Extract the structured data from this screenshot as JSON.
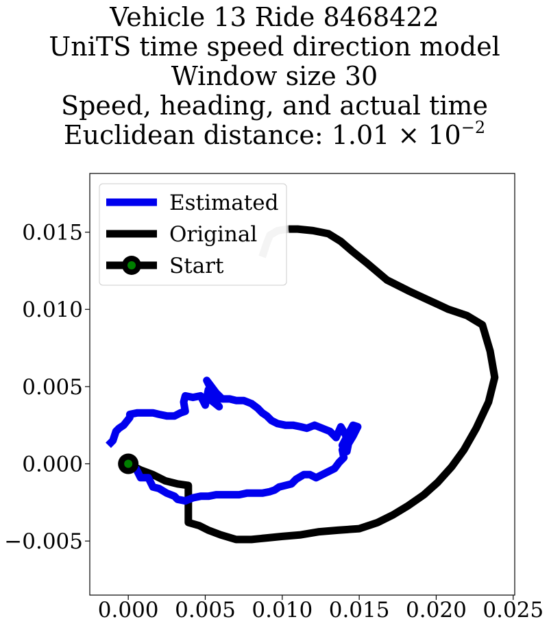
{
  "title": {
    "line1": "Vehicle 13 Ride 8468422",
    "line2": "UniTS time speed direction model",
    "line3": "Window size 30",
    "line4": "Speed, heading, and actual time",
    "line5_prefix": "Euclidean distance: 1.01 × 10",
    "line5_exponent": "−2"
  },
  "chart_data": {
    "type": "line",
    "title": "Vehicle 13 Ride 8468422 / UniTS time speed direction model / Window size 30 / Speed, heading, and actual time / Euclidean distance: 1.01 × 10^-2",
    "xlabel": "",
    "ylabel": "",
    "xlim": [
      -0.0025,
      0.0251
    ],
    "ylim": [
      -0.0085,
      0.0188
    ],
    "x_ticks": [
      "0.000",
      "0.005",
      "0.010",
      "0.015",
      "0.020",
      "0.025"
    ],
    "y_ticks": [
      "−0.005",
      "0.000",
      "0.005",
      "0.010",
      "0.015"
    ],
    "grid": false,
    "legend_position": "top-left",
    "series": [
      {
        "name": "Estimated",
        "color": "#0000ee",
        "points": [
          [
            -0.0013,
            0.0012
          ],
          [
            -0.001,
            0.0015
          ],
          [
            -0.0008,
            0.0021
          ],
          [
            -0.0006,
            0.0023
          ],
          [
            -0.0003,
            0.0025
          ],
          [
            0.0001,
            0.003
          ],
          [
            0.0001,
            0.0032
          ],
          [
            0.0006,
            0.0033
          ],
          [
            0.0012,
            0.0033
          ],
          [
            0.0016,
            0.0033
          ],
          [
            0.002,
            0.0032
          ],
          [
            0.0025,
            0.0031
          ],
          [
            0.003,
            0.0031
          ],
          [
            0.0034,
            0.0033
          ],
          [
            0.0037,
            0.0034
          ],
          [
            0.0036,
            0.004
          ],
          [
            0.0037,
            0.0044
          ],
          [
            0.0042,
            0.0043
          ],
          [
            0.0047,
            0.0044
          ],
          [
            0.005,
            0.0038
          ],
          [
            0.0052,
            0.0048
          ],
          [
            0.0055,
            0.0042
          ],
          [
            0.0059,
            0.0037
          ],
          [
            0.0054,
            0.0041
          ],
          [
            0.0054,
            0.0048
          ],
          [
            0.0051,
            0.0054
          ],
          [
            0.0054,
            0.005
          ],
          [
            0.0057,
            0.0046
          ],
          [
            0.0061,
            0.0042
          ],
          [
            0.0066,
            0.0042
          ],
          [
            0.007,
            0.0041
          ],
          [
            0.0075,
            0.0041
          ],
          [
            0.008,
            0.0039
          ],
          [
            0.0084,
            0.0036
          ],
          [
            0.0087,
            0.0033
          ],
          [
            0.009,
            0.0031
          ],
          [
            0.0093,
            0.0028
          ],
          [
            0.0097,
            0.0026
          ],
          [
            0.0102,
            0.0025
          ],
          [
            0.0107,
            0.0025
          ],
          [
            0.0112,
            0.0024
          ],
          [
            0.0116,
            0.0023
          ],
          [
            0.0121,
            0.0025
          ],
          [
            0.0126,
            0.0023
          ],
          [
            0.0131,
            0.0021
          ],
          [
            0.0135,
            0.0017
          ],
          [
            0.0138,
            0.0024
          ],
          [
            0.0141,
            0.0019
          ],
          [
            0.0143,
            0.0013
          ],
          [
            0.0139,
            0.0012
          ],
          [
            0.0146,
            0.0025
          ],
          [
            0.0149,
            0.0024
          ],
          [
            0.0146,
            0.0018
          ],
          [
            0.0143,
            0.0013
          ],
          [
            0.0142,
            0.0008
          ],
          [
            0.0139,
            0.0009
          ],
          [
            0.014,
            0.0004
          ],
          [
            0.0137,
            0.0001
          ],
          [
            0.0134,
            -0.0003
          ],
          [
            0.013,
            -0.0005
          ],
          [
            0.0126,
            -0.0007
          ],
          [
            0.0122,
            -0.0009
          ],
          [
            0.0118,
            -0.0007
          ],
          [
            0.0114,
            -0.0007
          ],
          [
            0.0109,
            -0.001
          ],
          [
            0.0106,
            -0.0013
          ],
          [
            0.0102,
            -0.0014
          ],
          [
            0.0098,
            -0.0015
          ],
          [
            0.0095,
            -0.0017
          ],
          [
            0.0092,
            -0.0018
          ],
          [
            0.0087,
            -0.0019
          ],
          [
            0.0082,
            -0.0019
          ],
          [
            0.0077,
            -0.0019
          ],
          [
            0.0072,
            -0.002
          ],
          [
            0.0067,
            -0.002
          ],
          [
            0.0062,
            -0.002
          ],
          [
            0.0057,
            -0.002
          ],
          [
            0.0052,
            -0.0021
          ],
          [
            0.0047,
            -0.0021
          ],
          [
            0.0042,
            -0.0022
          ],
          [
            0.0037,
            -0.0024
          ],
          [
            0.0032,
            -0.0023
          ],
          [
            0.003,
            -0.0021
          ],
          [
            0.0025,
            -0.0019
          ],
          [
            0.002,
            -0.0016
          ],
          [
            0.0016,
            -0.0015
          ],
          [
            0.0015,
            -0.0013
          ],
          [
            0.0013,
            -0.0009
          ],
          [
            0.0008,
            -0.0009
          ],
          [
            0.0005,
            -0.0003
          ],
          [
            0.0,
            0.0
          ]
        ]
      },
      {
        "name": "Original",
        "color": "#000000",
        "points": [
          [
            0.0,
            0.0
          ],
          [
            0.0008,
            -0.0004
          ],
          [
            0.0016,
            -0.0007
          ],
          [
            0.0024,
            -0.0011
          ],
          [
            0.0032,
            -0.0013
          ],
          [
            0.0039,
            -0.0014
          ],
          [
            0.0039,
            -0.002
          ],
          [
            0.0039,
            -0.003
          ],
          [
            0.0039,
            -0.0038
          ],
          [
            0.0046,
            -0.004
          ],
          [
            0.0052,
            -0.0043
          ],
          [
            0.006,
            -0.0046
          ],
          [
            0.007,
            -0.0049
          ],
          [
            0.008,
            -0.0049
          ],
          [
            0.009,
            -0.0048
          ],
          [
            0.01,
            -0.0047
          ],
          [
            0.0112,
            -0.0046
          ],
          [
            0.0124,
            -0.0044
          ],
          [
            0.0136,
            -0.0043
          ],
          [
            0.015,
            -0.0042
          ],
          [
            0.0162,
            -0.0038
          ],
          [
            0.0172,
            -0.0033
          ],
          [
            0.0182,
            -0.0027
          ],
          [
            0.0192,
            -0.002
          ],
          [
            0.0201,
            -0.0012
          ],
          [
            0.021,
            -0.0002
          ],
          [
            0.0218,
            0.0009
          ],
          [
            0.0226,
            0.0023
          ],
          [
            0.0234,
            0.004
          ],
          [
            0.0238,
            0.0056
          ],
          [
            0.0235,
            0.0073
          ],
          [
            0.023,
            0.009
          ],
          [
            0.022,
            0.0096
          ],
          [
            0.0208,
            0.01
          ],
          [
            0.0195,
            0.0106
          ],
          [
            0.0182,
            0.0112
          ],
          [
            0.0168,
            0.0119
          ],
          [
            0.0155,
            0.013
          ],
          [
            0.0145,
            0.0138
          ],
          [
            0.0138,
            0.0144
          ],
          [
            0.013,
            0.0149
          ],
          [
            0.012,
            0.0151
          ],
          [
            0.011,
            0.0152
          ],
          [
            0.0104,
            0.0152
          ]
        ]
      },
      {
        "name": "Original (faded tail)",
        "color": "#c8c8c8",
        "points": [
          [
            0.0104,
            0.0152
          ],
          [
            0.0097,
            0.0151
          ],
          [
            0.0092,
            0.0148
          ],
          [
            0.009,
            0.0143
          ],
          [
            0.0088,
            0.0137
          ],
          [
            0.0087,
            0.0134
          ]
        ]
      },
      {
        "name": "Start",
        "color": "#008000",
        "points": [
          [
            0.0,
            0.0
          ]
        ]
      }
    ],
    "legend": {
      "entries": [
        {
          "label": "Estimated",
          "color": "#0000ee"
        },
        {
          "label": "Original",
          "color": "#000000"
        },
        {
          "label": "Start",
          "color": "#000000",
          "marker_color": "#008000"
        }
      ]
    }
  }
}
